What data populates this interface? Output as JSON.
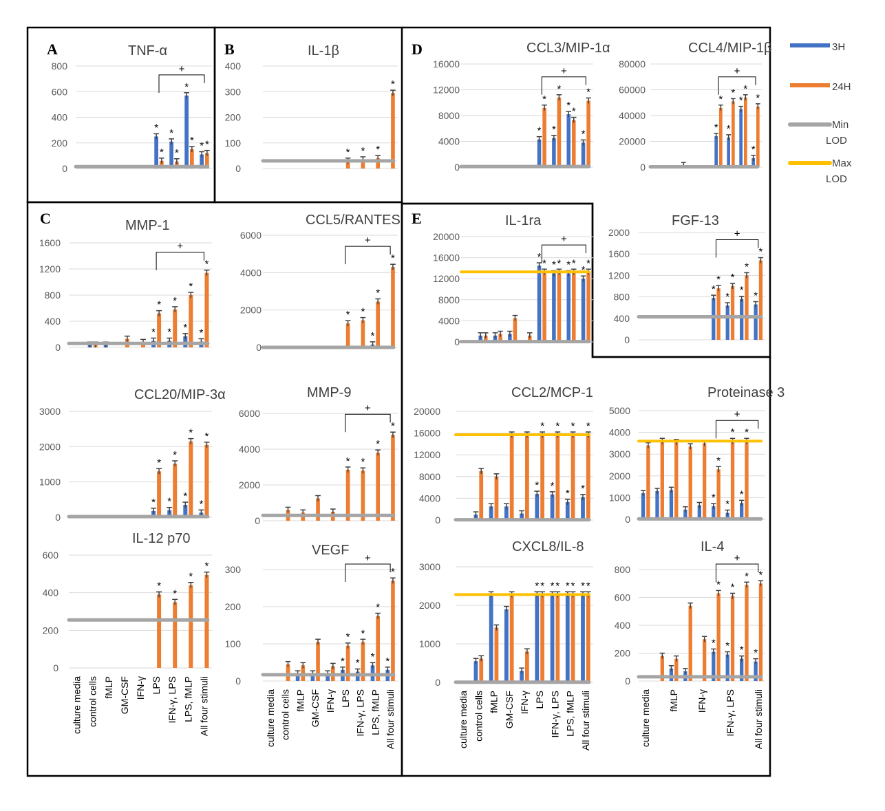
{
  "legend": [
    {
      "label": "3H",
      "color": "#4472C4"
    },
    {
      "label": "24H",
      "color": "#ED7D31"
    },
    {
      "label": "Min LOD",
      "color": "#A5A5A5"
    },
    {
      "label": "Max LOD",
      "color": "#FFC000"
    }
  ],
  "colors": {
    "h3": "#4472C4",
    "h24": "#ED7D31",
    "min_lod": "#A5A5A5",
    "max_lod": "#FFC000",
    "frame": "#000000"
  },
  "categories": [
    "culture media",
    "control cells",
    "fMLP",
    "GM-CSF",
    "IFN-γ",
    "LPS",
    "IFN-γ, LPS",
    "LPS, fMLP",
    "All four stimuli"
  ],
  "categories_sparse": [
    "culture media",
    "",
    "fMLP",
    "",
    "IFN-γ",
    "",
    "IFN-γ, LPS",
    "",
    "All four stimuli"
  ],
  "panel_labels": [
    "A",
    "B",
    "C",
    "D",
    "E"
  ],
  "annotations": {
    "significance": "*",
    "comparison": "+"
  },
  "chart_data": [
    {
      "type": "bar",
      "panel": "A",
      "title": "TNF-α",
      "ylim": [
        0,
        800
      ],
      "yticks": [
        0,
        200,
        400,
        600,
        800
      ],
      "min_lod": 15,
      "series": [
        {
          "name": "3H",
          "values": [
            null,
            null,
            null,
            null,
            null,
            250,
            210,
            570,
            110
          ]
        },
        {
          "name": "24H",
          "values": [
            null,
            null,
            null,
            null,
            null,
            60,
            55,
            150,
            120
          ]
        }
      ]
    },
    {
      "type": "bar",
      "panel": "B",
      "title": "IL-1β",
      "ylim": [
        0,
        400
      ],
      "yticks": [
        0,
        100,
        200,
        300,
        400
      ],
      "min_lod": 30,
      "series": [
        {
          "name": "3H",
          "values": [
            null,
            null,
            null,
            null,
            null,
            null,
            null,
            null,
            null
          ]
        },
        {
          "name": "24H",
          "values": [
            null,
            null,
            null,
            null,
            null,
            30,
            35,
            40,
            295
          ]
        }
      ]
    },
    {
      "type": "bar",
      "panel": "C",
      "title": "MMP-1",
      "ylim": [
        0,
        1600
      ],
      "yticks": [
        0,
        400,
        800,
        1200,
        1600
      ],
      "min_lod": 60,
      "series": [
        {
          "name": "3H",
          "values": [
            null,
            40,
            40,
            null,
            null,
            100,
            100,
            170,
            90
          ]
        },
        {
          "name": "24H",
          "values": [
            null,
            40,
            null,
            130,
            80,
            520,
            580,
            800,
            1140
          ]
        }
      ]
    },
    {
      "type": "bar",
      "panel": "C",
      "title": "CCL5/RANTES",
      "ylim": [
        0,
        6000
      ],
      "yticks": [
        0,
        2000,
        4000,
        6000
      ],
      "min_lod": 0,
      "series": [
        {
          "name": "3H",
          "values": [
            null,
            null,
            null,
            null,
            null,
            null,
            null,
            150,
            null
          ]
        },
        {
          "name": "24H",
          "values": [
            null,
            null,
            null,
            null,
            null,
            1280,
            1450,
            2450,
            4300
          ]
        }
      ]
    },
    {
      "type": "bar",
      "panel": "D",
      "title": "CCL3/MIP-1α",
      "ylim": [
        0,
        16000
      ],
      "yticks": [
        0,
        4000,
        8000,
        12000,
        16000
      ],
      "min_lod": 100,
      "series": [
        {
          "name": "3H",
          "values": [
            null,
            null,
            null,
            null,
            null,
            4300,
            4500,
            8200,
            3800
          ]
        },
        {
          "name": "24H",
          "values": [
            null,
            null,
            null,
            null,
            null,
            9200,
            10800,
            7300,
            10300
          ]
        }
      ]
    },
    {
      "type": "bar",
      "panel": "D",
      "title": "CCL4/MIP-1β",
      "ylim": [
        0,
        80000
      ],
      "yticks": [
        0,
        20000,
        40000,
        60000,
        80000
      ],
      "min_lod": 300,
      "series": [
        {
          "name": "3H",
          "values": [
            null,
            null,
            null,
            null,
            null,
            24000,
            23000,
            45000,
            7000
          ]
        },
        {
          "name": "24H",
          "values": [
            null,
            null,
            1500,
            null,
            null,
            46000,
            51000,
            54000,
            47000
          ]
        }
      ]
    },
    {
      "type": "bar",
      "panel": "E",
      "title": "IL-1ra",
      "ylim": [
        0,
        20000
      ],
      "yticks": [
        0,
        4000,
        8000,
        12000,
        16000,
        20000
      ],
      "min_lod": 50,
      "max_lod": 13300,
      "series": [
        {
          "name": "3H",
          "values": [
            null,
            1200,
            1200,
            1500,
            null,
            14500,
            13000,
            13000,
            12000
          ]
        },
        {
          "name": "24H",
          "values": [
            null,
            1200,
            1500,
            4500,
            1200,
            13300,
            13300,
            13300,
            13300
          ]
        }
      ]
    },
    {
      "type": "bar",
      "panel": "E",
      "title": "FGF-13",
      "ylim": [
        0,
        2000
      ],
      "yticks": [
        0,
        400,
        800,
        1200,
        1600,
        2000
      ],
      "min_lod": 430,
      "series": [
        {
          "name": "3H",
          "values": [
            null,
            null,
            null,
            null,
            null,
            780,
            640,
            760,
            660
          ]
        },
        {
          "name": "24H",
          "values": [
            null,
            null,
            null,
            null,
            null,
            960,
            1000,
            1200,
            1480
          ]
        }
      ]
    },
    {
      "type": "bar",
      "panel": "C",
      "title": "CCL20/MIP-3α",
      "ylim": [
        0,
        3000
      ],
      "yticks": [
        0,
        1000,
        2000,
        3000
      ],
      "min_lod": 20,
      "series": [
        {
          "name": "3H",
          "values": [
            null,
            null,
            null,
            null,
            null,
            180,
            200,
            350,
            130
          ]
        },
        {
          "name": "24H",
          "values": [
            null,
            null,
            null,
            null,
            null,
            1300,
            1520,
            2150,
            2050
          ]
        }
      ]
    },
    {
      "type": "bar",
      "panel": "C",
      "title": "MMP-9",
      "ylim": [
        0,
        6000
      ],
      "yticks": [
        0,
        2000,
        4000,
        6000
      ],
      "min_lod": 300,
      "series": [
        {
          "name": "3H",
          "values": [
            null,
            null,
            null,
            null,
            null,
            null,
            null,
            null,
            null
          ]
        },
        {
          "name": "24H",
          "values": [
            null,
            600,
            450,
            1250,
            500,
            2850,
            2800,
            3800,
            4800
          ]
        }
      ]
    },
    {
      "type": "bar",
      "panel": "C",
      "title": "IL-12 p70",
      "ylim": [
        0,
        600
      ],
      "yticks": [
        0,
        200,
        400,
        600
      ],
      "min_lod": 255,
      "series": [
        {
          "name": "3H",
          "values": [
            null,
            null,
            null,
            null,
            null,
            null,
            null,
            null,
            null
          ]
        },
        {
          "name": "24H",
          "values": [
            null,
            null,
            null,
            null,
            null,
            390,
            350,
            440,
            495
          ]
        }
      ]
    },
    {
      "type": "bar",
      "panel": "C",
      "title": "VEGF",
      "ylim": [
        0,
        300
      ],
      "yticks": [
        0,
        100,
        200,
        300
      ],
      "min_lod": 17,
      "series": [
        {
          "name": "3H",
          "values": [
            null,
            null,
            20,
            20,
            20,
            30,
            25,
            42,
            30
          ]
        },
        {
          "name": "24H",
          "values": [
            null,
            45,
            42,
            105,
            40,
            95,
            105,
            175,
            270
          ]
        }
      ]
    },
    {
      "type": "bar",
      "panel": "E",
      "title": "CCL2/MCP-1",
      "ylim": [
        0,
        20000
      ],
      "yticks": [
        0,
        4000,
        8000,
        12000,
        16000,
        20000
      ],
      "min_lod": 50,
      "max_lod": 15700,
      "series": [
        {
          "name": "3H",
          "values": [
            null,
            1000,
            2500,
            2500,
            1200,
            4800,
            4700,
            3300,
            4200
          ]
        },
        {
          "name": "24H",
          "values": [
            null,
            9000,
            8000,
            15700,
            15700,
            15700,
            15700,
            15700,
            15700
          ]
        }
      ]
    },
    {
      "type": "bar",
      "panel": "E",
      "title": "Proteinase 3",
      "ylim": [
        0,
        5000
      ],
      "yticks": [
        0,
        1000,
        2000,
        3000,
        4000,
        5000
      ],
      "min_lod": 20,
      "max_lod": 3600,
      "series": [
        {
          "name": "3H",
          "values": [
            1200,
            1300,
            1350,
            450,
            650,
            600,
            300,
            750,
            null
          ]
        },
        {
          "name": "24H",
          "values": [
            3400,
            3600,
            3550,
            3350,
            3500,
            2300,
            3600,
            3600,
            null
          ]
        }
      ]
    },
    {
      "type": "bar",
      "panel": "E",
      "title": "CXCL8/IL-8",
      "ylim": [
        0,
        3000
      ],
      "yticks": [
        0,
        1000,
        2000,
        3000
      ],
      "min_lod": 5,
      "max_lod": 2280,
      "series": [
        {
          "name": "3H",
          "values": [
            null,
            550,
            2280,
            1900,
            300,
            2280,
            2280,
            2280,
            2280
          ]
        },
        {
          "name": "24H",
          "values": [
            null,
            620,
            1420,
            2280,
            800,
            2280,
            2280,
            2280,
            2280
          ]
        }
      ]
    },
    {
      "type": "bar",
      "panel": "E",
      "title": "IL-4",
      "ylim": [
        0,
        800
      ],
      "yticks": [
        0,
        200,
        400,
        600,
        800
      ],
      "min_lod": 30,
      "series": [
        {
          "name": "3H",
          "values": [
            null,
            null,
            90,
            70,
            null,
            210,
            190,
            160,
            140
          ]
        },
        {
          "name": "24H",
          "values": [
            null,
            180,
            160,
            540,
            300,
            630,
            610,
            690,
            700
          ]
        }
      ]
    }
  ]
}
